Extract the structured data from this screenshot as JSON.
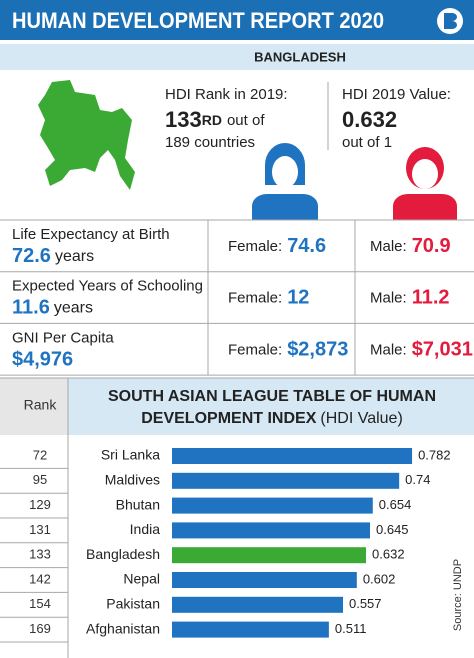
{
  "header": {
    "title": "HUMAN DEVELOPMENT REPORT 2020",
    "country": "BANGLADESH"
  },
  "hdi": {
    "rank_label": "HDI Rank in 2019:",
    "rank": "133",
    "rank_suffix": "RD",
    "rank_of": "out of",
    "rank_total": "189 countries",
    "value_label": "HDI 2019 Value:",
    "value": "0.632",
    "value_of": "out of 1"
  },
  "table": {
    "female_label": "Female:",
    "male_label": "Male:",
    "rows": [
      {
        "label": "Life Expectancy at Birth",
        "value": "72.6",
        "unit": "years",
        "female": "74.6",
        "male": "70.9"
      },
      {
        "label": "Expected Years of Schooling",
        "value": "11.6",
        "unit": "years",
        "female": "12",
        "male": "11.2"
      },
      {
        "label": "GNI Per Capita",
        "value": "$4,976",
        "unit": "",
        "female": "$2,873",
        "male": "$7,031"
      }
    ]
  },
  "ranks": {
    "header": "Rank",
    "values": [
      "72",
      "95",
      "129",
      "131",
      "133",
      "142",
      "154",
      "169"
    ]
  },
  "source": "Source: UNDP",
  "chart_data": {
    "type": "hbar",
    "title": [
      "SOUTH ASIAN LEAGUE TABLE OF HUMAN",
      "DEVELOPMENT INDEX"
    ],
    "subtitle": "(HDI Value)",
    "categories": [
      "Sri Lanka",
      "Maldives",
      "Bhutan",
      "India",
      "Bangladesh",
      "Nepal",
      "Pakistan",
      "Afghanistan"
    ],
    "values": [
      0.782,
      0.74,
      0.654,
      0.645,
      0.632,
      0.602,
      0.557,
      0.511
    ],
    "colors": [
      "#1f73c1",
      "#1f73c1",
      "#1f73c1",
      "#1f73c1",
      "#3aaa35",
      "#1f73c1",
      "#1f73c1",
      "#1f73c1"
    ],
    "xlim": [
      0,
      1
    ]
  }
}
